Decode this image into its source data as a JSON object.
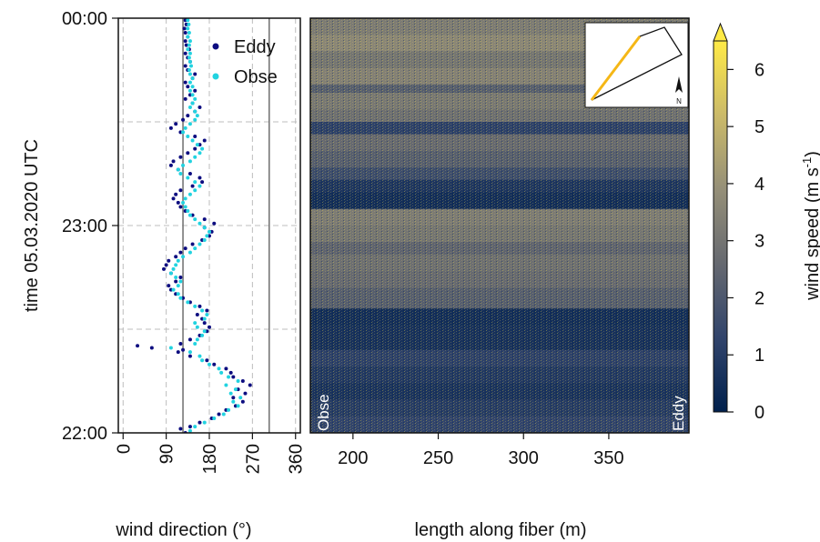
{
  "chart_data": [
    {
      "type": "scatter",
      "xlabel": "wind direction (°)",
      "ylabel": "time 05.03.2020 UTC",
      "xlim": [
        -10,
        370
      ],
      "x_ticks": [
        "0",
        "90",
        "180",
        "270",
        "360"
      ],
      "y_ticks": [
        "22:00",
        "23:00",
        "00:00"
      ],
      "grid": true,
      "reference_lines_deg": [
        125,
        305
      ],
      "legend_position": "top-right",
      "series": [
        {
          "name": "Eddy",
          "color": "#0d0d80",
          "points": [
            [
              130,
              22.0
            ],
            [
              120,
              22.02
            ],
            [
              140,
              22.03
            ],
            [
              160,
              22.05
            ],
            [
              185,
              22.07
            ],
            [
              200,
              22.09
            ],
            [
              215,
              22.11
            ],
            [
              235,
              22.13
            ],
            [
              250,
              22.15
            ],
            [
              230,
              22.17
            ],
            [
              255,
              22.19
            ],
            [
              240,
              22.21
            ],
            [
              265,
              22.23
            ],
            [
              250,
              22.25
            ],
            [
              230,
              22.27
            ],
            [
              225,
              22.29
            ],
            [
              215,
              22.31
            ],
            [
              190,
              22.33
            ],
            [
              175,
              22.35
            ],
            [
              140,
              22.37
            ],
            [
              115,
              22.39
            ],
            [
              125,
              22.4
            ],
            [
              60,
              22.41
            ],
            [
              30,
              22.42
            ],
            [
              120,
              22.43
            ],
            [
              140,
              22.45
            ],
            [
              160,
              22.47
            ],
            [
              175,
              22.49
            ],
            [
              180,
              22.51
            ],
            [
              170,
              22.53
            ],
            [
              165,
              22.55
            ],
            [
              155,
              22.57
            ],
            [
              175,
              22.59
            ],
            [
              160,
              22.61
            ],
            [
              140,
              22.63
            ],
            [
              125,
              22.65
            ],
            [
              110,
              22.67
            ],
            [
              100,
              22.69
            ],
            [
              95,
              22.71
            ],
            [
              110,
              22.73
            ],
            [
              120,
              22.75
            ],
            [
              100,
              22.77
            ],
            [
              85,
              22.79
            ],
            [
              90,
              22.81
            ],
            [
              95,
              22.83
            ],
            [
              110,
              22.85
            ],
            [
              120,
              22.87
            ],
            [
              130,
              22.89
            ],
            [
              145,
              22.91
            ],
            [
              165,
              22.93
            ],
            [
              180,
              22.95
            ],
            [
              185,
              22.97
            ],
            [
              170,
              22.99
            ],
            [
              190,
              23.01
            ],
            [
              170,
              23.03
            ],
            [
              145,
              23.05
            ],
            [
              130,
              23.07
            ],
            [
              120,
              23.09
            ],
            [
              115,
              23.11
            ],
            [
              105,
              23.13
            ],
            [
              110,
              23.15
            ],
            [
              120,
              23.17
            ],
            [
              145,
              23.19
            ],
            [
              165,
              23.21
            ],
            [
              160,
              23.23
            ],
            [
              140,
              23.25
            ],
            [
              115,
              23.27
            ],
            [
              100,
              23.29
            ],
            [
              105,
              23.31
            ],
            [
              120,
              23.33
            ],
            [
              135,
              23.35
            ],
            [
              150,
              23.37
            ],
            [
              160,
              23.39
            ],
            [
              170,
              23.41
            ],
            [
              150,
              23.43
            ],
            [
              120,
              23.45
            ],
            [
              100,
              23.47
            ],
            [
              110,
              23.49
            ],
            [
              125,
              23.51
            ],
            [
              135,
              23.53
            ],
            [
              150,
              23.55
            ],
            [
              160,
              23.57
            ],
            [
              145,
              23.59
            ],
            [
              130,
              23.61
            ],
            [
              140,
              23.63
            ],
            [
              150,
              23.65
            ],
            [
              135,
              23.67
            ],
            [
              130,
              23.69
            ],
            [
              145,
              23.71
            ],
            [
              150,
              23.73
            ],
            [
              135,
              23.75
            ],
            [
              130,
              23.77
            ],
            [
              140,
              23.79
            ],
            [
              135,
              23.81
            ],
            [
              130,
              23.83
            ],
            [
              138,
              23.85
            ],
            [
              132,
              23.87
            ],
            [
              130,
              23.89
            ],
            [
              135,
              23.91
            ],
            [
              130,
              23.93
            ],
            [
              128,
              23.95
            ],
            [
              132,
              23.97
            ],
            [
              130,
              23.99
            ]
          ]
        },
        {
          "name": "Obse",
          "color": "#22d3e0",
          "points": [
            [
              140,
              22.01
            ],
            [
              150,
              22.03
            ],
            [
              170,
              22.05
            ],
            [
              190,
              22.07
            ],
            [
              210,
              22.09
            ],
            [
              220,
              22.11
            ],
            [
              240,
              22.13
            ],
            [
              230,
              22.15
            ],
            [
              245,
              22.17
            ],
            [
              225,
              22.19
            ],
            [
              235,
              22.21
            ],
            [
              215,
              22.23
            ],
            [
              240,
              22.25
            ],
            [
              220,
              22.27
            ],
            [
              205,
              22.29
            ],
            [
              200,
              22.31
            ],
            [
              180,
              22.33
            ],
            [
              165,
              22.35
            ],
            [
              160,
              22.37
            ],
            [
              140,
              22.39
            ],
            [
              100,
              22.41
            ],
            [
              150,
              22.43
            ],
            [
              155,
              22.45
            ],
            [
              165,
              22.47
            ],
            [
              170,
              22.49
            ],
            [
              155,
              22.51
            ],
            [
              150,
              22.53
            ],
            [
              170,
              22.55
            ],
            [
              175,
              22.57
            ],
            [
              165,
              22.59
            ],
            [
              150,
              22.61
            ],
            [
              135,
              22.63
            ],
            [
              120,
              22.65
            ],
            [
              115,
              22.67
            ],
            [
              105,
              22.69
            ],
            [
              115,
              22.71
            ],
            [
              120,
              22.73
            ],
            [
              110,
              22.75
            ],
            [
              100,
              22.77
            ],
            [
              105,
              22.79
            ],
            [
              110,
              22.81
            ],
            [
              115,
              22.83
            ],
            [
              125,
              22.85
            ],
            [
              140,
              22.87
            ],
            [
              150,
              22.89
            ],
            [
              160,
              22.91
            ],
            [
              170,
              22.93
            ],
            [
              175,
              22.95
            ],
            [
              180,
              22.97
            ],
            [
              170,
              22.99
            ],
            [
              160,
              23.01
            ],
            [
              150,
              23.03
            ],
            [
              140,
              23.05
            ],
            [
              135,
              23.07
            ],
            [
              130,
              23.09
            ],
            [
              125,
              23.11
            ],
            [
              130,
              23.13
            ],
            [
              140,
              23.15
            ],
            [
              150,
              23.17
            ],
            [
              160,
              23.19
            ],
            [
              150,
              23.21
            ],
            [
              135,
              23.23
            ],
            [
              120,
              23.25
            ],
            [
              115,
              23.27
            ],
            [
              125,
              23.29
            ],
            [
              140,
              23.31
            ],
            [
              150,
              23.33
            ],
            [
              160,
              23.35
            ],
            [
              165,
              23.37
            ],
            [
              155,
              23.39
            ],
            [
              145,
              23.41
            ],
            [
              135,
              23.43
            ],
            [
              125,
              23.45
            ],
            [
              130,
              23.47
            ],
            [
              140,
              23.49
            ],
            [
              150,
              23.51
            ],
            [
              155,
              23.53
            ],
            [
              150,
              23.55
            ],
            [
              140,
              23.57
            ],
            [
              145,
              23.59
            ],
            [
              150,
              23.61
            ],
            [
              145,
              23.63
            ],
            [
              140,
              23.65
            ],
            [
              145,
              23.67
            ],
            [
              140,
              23.69
            ],
            [
              145,
              23.71
            ],
            [
              140,
              23.73
            ],
            [
              138,
              23.75
            ],
            [
              142,
              23.77
            ],
            [
              140,
              23.79
            ],
            [
              138,
              23.81
            ],
            [
              140,
              23.83
            ],
            [
              135,
              23.85
            ],
            [
              138,
              23.87
            ],
            [
              140,
              23.89
            ],
            [
              135,
              23.91
            ],
            [
              138,
              23.93
            ],
            [
              135,
              23.95
            ],
            [
              137,
              23.97
            ],
            [
              135,
              23.99
            ]
          ]
        }
      ]
    },
    {
      "type": "heatmap",
      "xlabel": "length along fiber (m)",
      "xlim": [
        175,
        397
      ],
      "x_ticks": [
        "200",
        "250",
        "300",
        "350"
      ],
      "colorbar_label": "wind speed (m s",
      "colorbar_label_superscript": "-1",
      "colorbar_label_close": ")",
      "colorbar_ticks": [
        "0",
        "1",
        "2",
        "3",
        "4",
        "5",
        "6"
      ],
      "colorbar_range": [
        0,
        6.5
      ],
      "colormap": [
        "#00204d",
        "#31446b",
        "#666970",
        "#958f78",
        "#cbba69",
        "#ffea46"
      ],
      "end_labels": {
        "left": "Obse",
        "right": "Eddy"
      },
      "row_profile_start_top": [
        {
          "until": 0.04,
          "speed": 3.2
        },
        {
          "until": 0.08,
          "speed": 3.6
        },
        {
          "until": 0.12,
          "speed": 3.0
        },
        {
          "until": 0.16,
          "speed": 3.4
        },
        {
          "until": 0.18,
          "speed": 2.2
        },
        {
          "until": 0.22,
          "speed": 3.1
        },
        {
          "until": 0.25,
          "speed": 2.8
        },
        {
          "until": 0.28,
          "speed": 1.2
        },
        {
          "until": 0.32,
          "speed": 2.6
        },
        {
          "until": 0.36,
          "speed": 2.2
        },
        {
          "until": 0.39,
          "speed": 1.6
        },
        {
          "until": 0.42,
          "speed": 0.8
        },
        {
          "until": 0.46,
          "speed": 0.5
        },
        {
          "until": 0.5,
          "speed": 3.2
        },
        {
          "until": 0.54,
          "speed": 3.0
        },
        {
          "until": 0.57,
          "speed": 2.4
        },
        {
          "until": 0.61,
          "speed": 2.8
        },
        {
          "until": 0.65,
          "speed": 2.6
        },
        {
          "until": 0.7,
          "speed": 2.2
        },
        {
          "until": 0.74,
          "speed": 0.5
        },
        {
          "until": 0.8,
          "speed": 0.6
        },
        {
          "until": 0.84,
          "speed": 1.2
        },
        {
          "until": 0.88,
          "speed": 0.9
        },
        {
          "until": 0.92,
          "speed": 0.7
        },
        {
          "until": 0.96,
          "speed": 1.0
        },
        {
          "until": 1.0,
          "speed": 1.3
        }
      ]
    }
  ]
}
